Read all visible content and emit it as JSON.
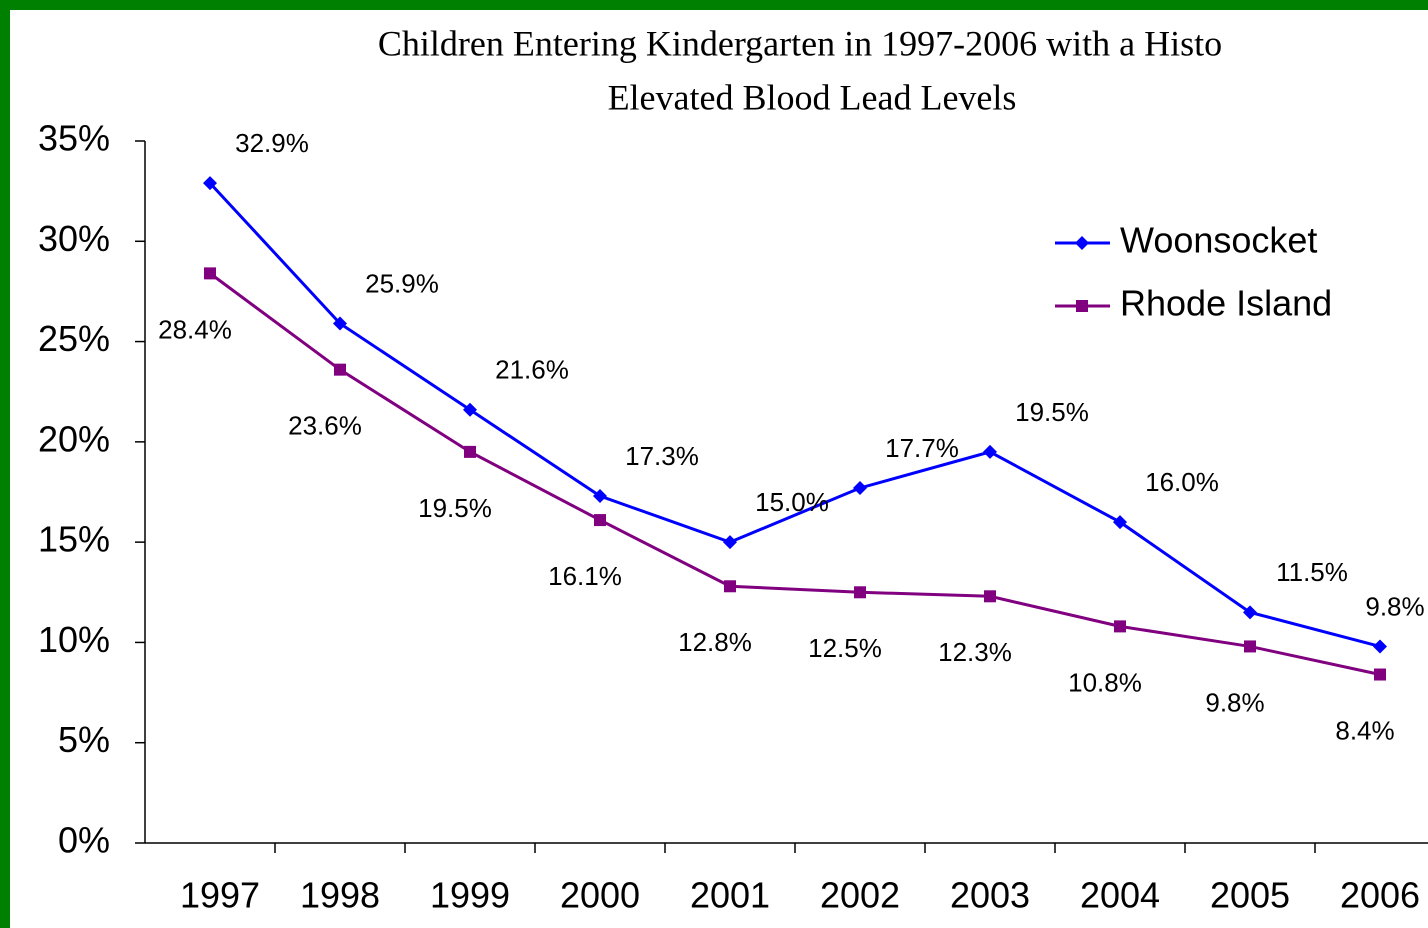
{
  "chart_data": {
    "type": "line",
    "title": [
      "Children Entering Kindergarten in 1997-2006 with a Histo",
      "Elevated Blood Lead Levels"
    ],
    "categories": [
      "1997",
      "1998",
      "1999",
      "2000",
      "2001",
      "2002",
      "2003",
      "2004",
      "2005",
      "2006"
    ],
    "series": [
      {
        "name": "Woonsocket",
        "color": "#0000ff",
        "marker": "diamond",
        "values": [
          32.9,
          25.9,
          21.6,
          17.3,
          15.0,
          17.7,
          19.5,
          16.0,
          11.5,
          9.8
        ],
        "value_labels": [
          "32.9%",
          "25.9%",
          "21.6%",
          "17.3%",
          "15.0%",
          "17.7%",
          "19.5%",
          "16.0%",
          "11.5%",
          "9.8%"
        ]
      },
      {
        "name": "Rhode Island",
        "color": "#800080",
        "marker": "square",
        "values": [
          28.4,
          23.6,
          19.5,
          16.1,
          12.8,
          12.5,
          12.3,
          10.8,
          9.8,
          8.4
        ],
        "value_labels": [
          "28.4%",
          "23.6%",
          "19.5%",
          "16.1%",
          "12.8%",
          "12.5%",
          "12.3%",
          "10.8%",
          "9.8%",
          "8.4%"
        ]
      }
    ],
    "ylim": [
      0,
      35
    ],
    "yticks": [
      {
        "value": 0,
        "label": "0%"
      },
      {
        "value": 5,
        "label": "5%"
      },
      {
        "value": 10,
        "label": "10%"
      },
      {
        "value": 15,
        "label": "15%"
      },
      {
        "value": 20,
        "label": "20%"
      },
      {
        "value": 25,
        "label": "25%"
      },
      {
        "value": 30,
        "label": "30%"
      },
      {
        "value": 35,
        "label": "35%"
      }
    ],
    "grid": false,
    "legend": "upper right"
  }
}
